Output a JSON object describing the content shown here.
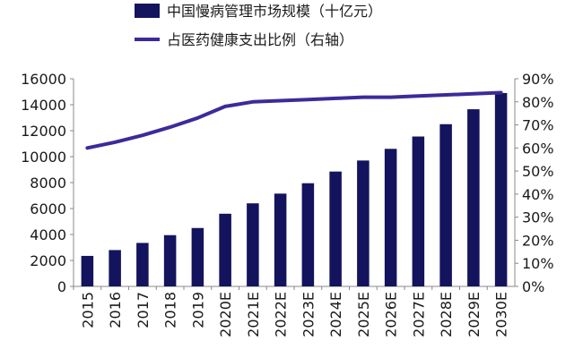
{
  "chart_data": {
    "type": "bar",
    "categories": [
      "2015",
      "2016",
      "2017",
      "2018",
      "2019",
      "2020E",
      "2021E",
      "2022E",
      "2023E",
      "2024E",
      "2025E",
      "2026E",
      "2027E",
      "2028E",
      "2029E",
      "2030E"
    ],
    "series": [
      {
        "name": "中国慢病管理市场规模（十亿元）",
        "type": "bar",
        "axis": "left",
        "color": "#14135e",
        "values": [
          2350,
          2800,
          3350,
          3950,
          4500,
          5600,
          6400,
          7150,
          7950,
          8850,
          9700,
          10600,
          11550,
          12500,
          13650,
          14900
        ]
      },
      {
        "name": "占医药健康支出比例（右轴）",
        "type": "line",
        "axis": "right",
        "color": "#3b2b9a",
        "values": [
          60,
          62.5,
          65.5,
          69,
          73,
          78,
          80,
          80.5,
          81,
          81.5,
          82,
          82,
          82.5,
          83,
          83.5,
          84
        ]
      }
    ],
    "y_left": {
      "min": 0,
      "max": 16000,
      "ticks": [
        "0",
        "2000",
        "4000",
        "6000",
        "8000",
        "10000",
        "12000",
        "14000",
        "16000"
      ]
    },
    "y_right": {
      "min": 0,
      "max": 90,
      "ticks": [
        "0%",
        "10%",
        "20%",
        "30%",
        "40%",
        "50%",
        "60%",
        "70%",
        "80%",
        "90%"
      ]
    },
    "legend": [
      {
        "label": "中国慢病管理市场规模（十亿元）",
        "symbol": "bar"
      },
      {
        "label": "占医药健康支出比例（右轴）",
        "symbol": "line"
      }
    ],
    "legend_position": "top-left",
    "grid": false
  }
}
